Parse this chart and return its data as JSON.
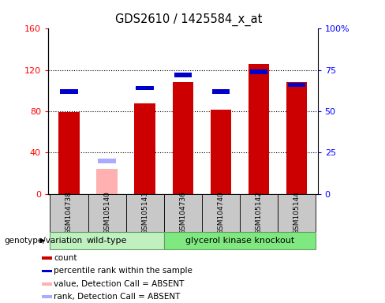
{
  "title": "GDS2610 / 1425584_x_at",
  "samples": [
    "GSM104738",
    "GSM105140",
    "GSM105141",
    "GSM104736",
    "GSM104740",
    "GSM105142",
    "GSM105144"
  ],
  "red_counts": [
    79,
    0,
    88,
    108,
    82,
    126,
    108
  ],
  "pink_counts": [
    0,
    24,
    0,
    0,
    0,
    0,
    0
  ],
  "blue_ranks_pct": [
    62,
    0,
    64,
    72,
    62,
    74,
    66
  ],
  "light_blue_ranks_pct": [
    0,
    20,
    0,
    0,
    0,
    0,
    0
  ],
  "ylim_left": [
    0,
    160
  ],
  "ylim_right": [
    0,
    100
  ],
  "yticks_left": [
    0,
    40,
    80,
    120,
    160
  ],
  "ytick_labels_left": [
    "0",
    "40",
    "80",
    "120",
    "160"
  ],
  "yticks_right": [
    0,
    25,
    50,
    75,
    100
  ],
  "ytick_labels_right": [
    "0",
    "25",
    "50",
    "75",
    "100%"
  ],
  "bar_width": 0.55,
  "red_color": "#cc0000",
  "pink_color": "#ffb0b0",
  "blue_color": "#0000cc",
  "light_blue_color": "#aaaaff",
  "legend_items": [
    {
      "label": "count",
      "color": "#cc0000"
    },
    {
      "label": "percentile rank within the sample",
      "color": "#0000cc"
    },
    {
      "label": "value, Detection Call = ABSENT",
      "color": "#ffb0b0"
    },
    {
      "label": "rank, Detection Call = ABSENT",
      "color": "#aaaaff"
    }
  ],
  "wt_color": "#c0f0c0",
  "gk_color": "#80e880",
  "wt_border": "#60a060",
  "gray_box": "#c8c8c8"
}
